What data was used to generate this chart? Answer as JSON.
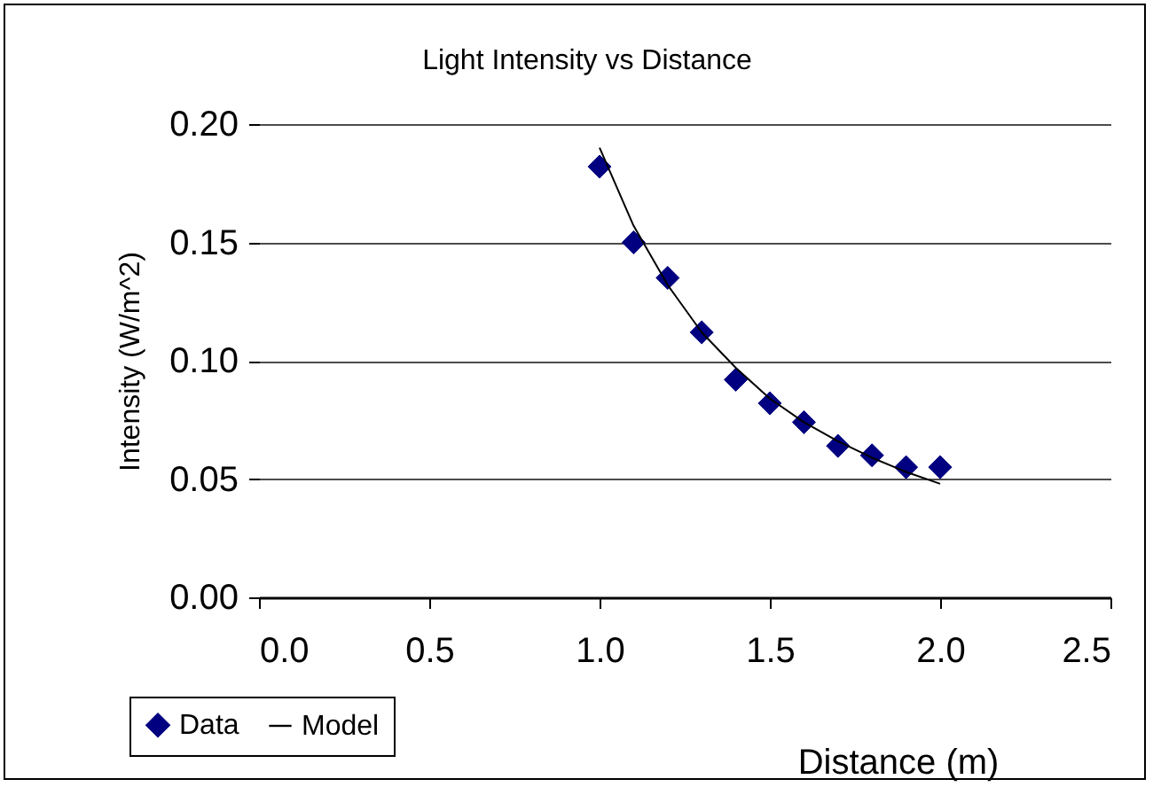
{
  "chart_data": {
    "type": "scatter",
    "title": "Light Intensity vs Distance",
    "xlabel": "Distance (m)",
    "ylabel": "Intensity (W/m^2)",
    "x": [
      1.0,
      1.1,
      1.2,
      1.3,
      1.4,
      1.5,
      1.6,
      1.7,
      1.8,
      1.9,
      2.0
    ],
    "series": [
      {
        "name": "Data",
        "color": "#000080",
        "marker": "diamond",
        "values": [
          0.182,
          0.15,
          0.135,
          0.112,
          0.092,
          0.082,
          0.074,
          0.064,
          0.06,
          0.055,
          0.055
        ]
      },
      {
        "name": "Model",
        "type": "line",
        "color": "#000000",
        "marker": "none",
        "line_style": "solid",
        "values": [
          0.19,
          0.157,
          0.132,
          0.112,
          0.097,
          0.084,
          0.074,
          0.066,
          0.059,
          0.053,
          0.048
        ]
      }
    ],
    "xlim": [
      0,
      2.5
    ],
    "xticks": [
      {
        "value": 0,
        "label": "0.0"
      },
      {
        "value": 0.5,
        "label": "0.5"
      },
      {
        "value": 1,
        "label": "1.0"
      },
      {
        "value": 1.5,
        "label": "1.5"
      },
      {
        "value": 2,
        "label": "2.0"
      },
      {
        "value": 2.5,
        "label": "2.5"
      }
    ],
    "ylim": [
      0,
      0.2
    ],
    "yticks": [
      {
        "value": 0,
        "label": "0.00"
      },
      {
        "value": 0.05,
        "label": "0.05"
      },
      {
        "value": 0.1,
        "label": "0.10"
      },
      {
        "value": 0.15,
        "label": "0.15"
      },
      {
        "value": 0.2,
        "label": "0.20"
      }
    ],
    "grid": "y",
    "legend": "bottom left"
  }
}
